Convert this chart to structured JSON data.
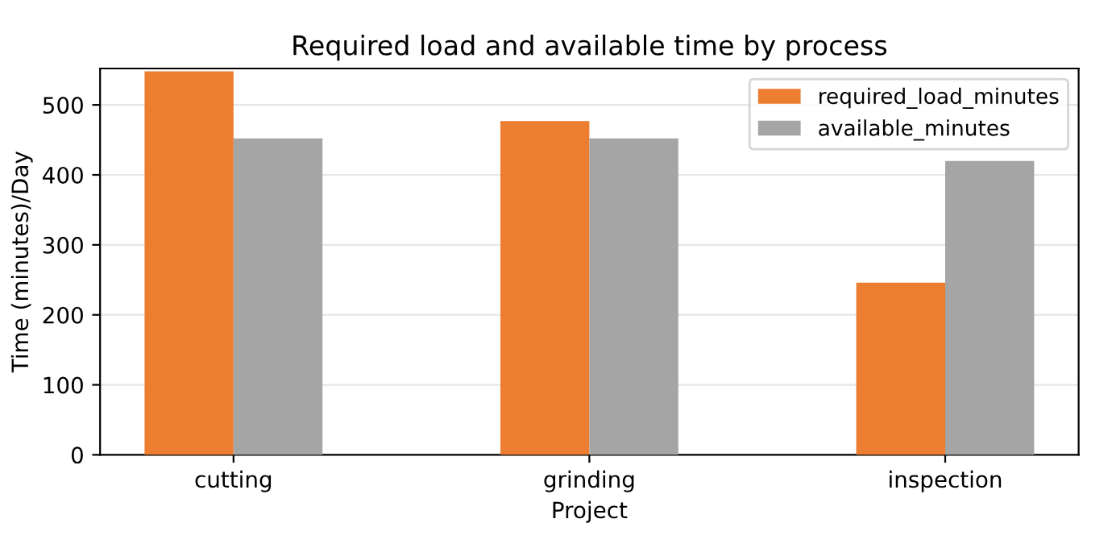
{
  "chart_data": {
    "type": "bar",
    "title": "Required load and available time by process",
    "xlabel": "Project",
    "ylabel": "Time (minutes)/Day",
    "categories": [
      "cutting",
      "grinding",
      "inspection"
    ],
    "series": [
      {
        "name": "required_load_minutes",
        "color": "#ed7d31",
        "values": [
          548,
          477,
          246
        ]
      },
      {
        "name": "available_minutes",
        "color": "#a5a5a5",
        "values": [
          452,
          452,
          420
        ]
      }
    ],
    "ylim": [
      0,
      552
    ],
    "yticks": [
      0,
      100,
      200,
      300,
      400,
      500
    ],
    "grid": "y",
    "legend": "top right"
  }
}
